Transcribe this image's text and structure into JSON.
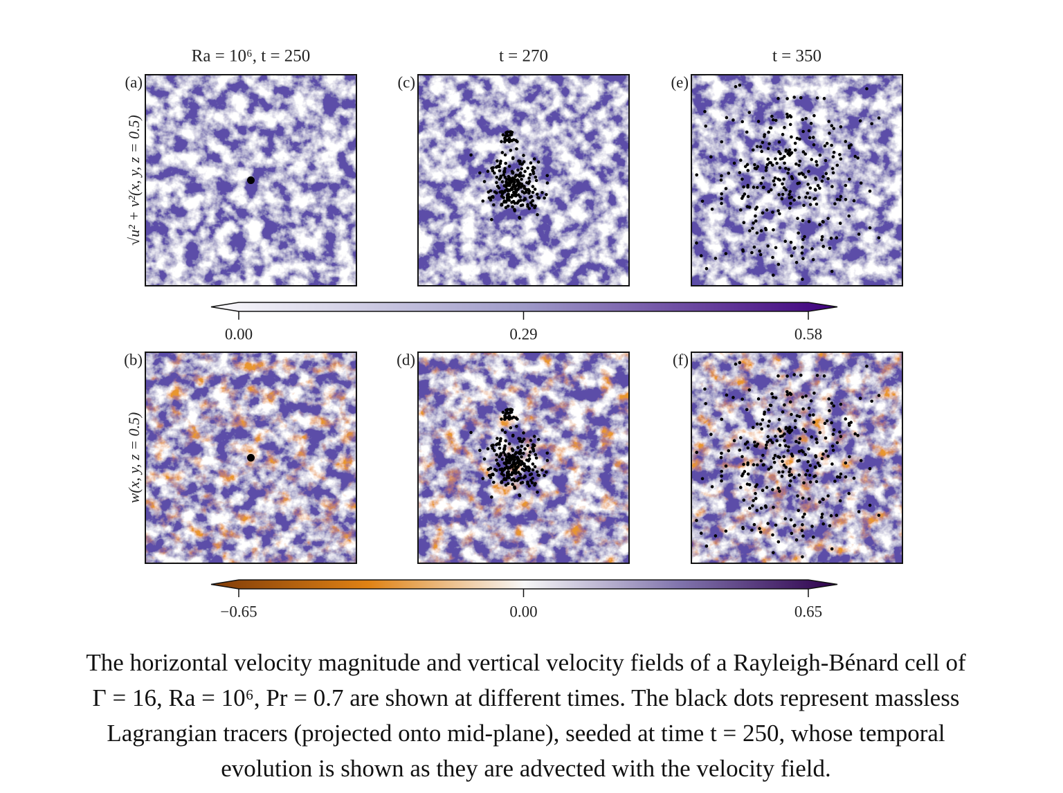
{
  "column_titles": [
    "Ra = 10⁶, t = 250",
    "t = 270",
    "t = 350"
  ],
  "rows": [
    {
      "y_label": "√u² + v²(x, y, z = 0.5)",
      "panel_labels": [
        "(a)",
        "(c)",
        "(e)"
      ],
      "colorbar": {
        "lim": [
          0,
          0.58
        ],
        "ticks": [
          {
            "value": 0,
            "label": "0.00"
          },
          {
            "value": 0.29,
            "label": "0.29"
          },
          {
            "value": 0.58,
            "label": "0.58"
          }
        ]
      }
    },
    {
      "y_label": "w(x, y, z = 0.5)",
      "panel_labels": [
        "(b)",
        "(d)",
        "(f)"
      ],
      "colorbar": {
        "lim": [
          -0.65,
          0.65
        ],
        "ticks": [
          {
            "value": -0.65,
            "label": "−0.65"
          },
          {
            "value": 0,
            "label": "0.00"
          },
          {
            "value": 0.65,
            "label": "0.65"
          }
        ]
      }
    }
  ],
  "caption": [
    "The horizontal velocity magnitude and vertical velocity fields of a Rayleigh-Bénard cell of",
    "Γ = 16, Ra = 10⁶, Pr = 0.7 are shown at different times. The black dots represent massless",
    "Lagrangian tracers (projected onto mid-plane), seeded at time t = 250, whose temporal",
    "evolution is shown as they are advected with the velocity field."
  ]
}
